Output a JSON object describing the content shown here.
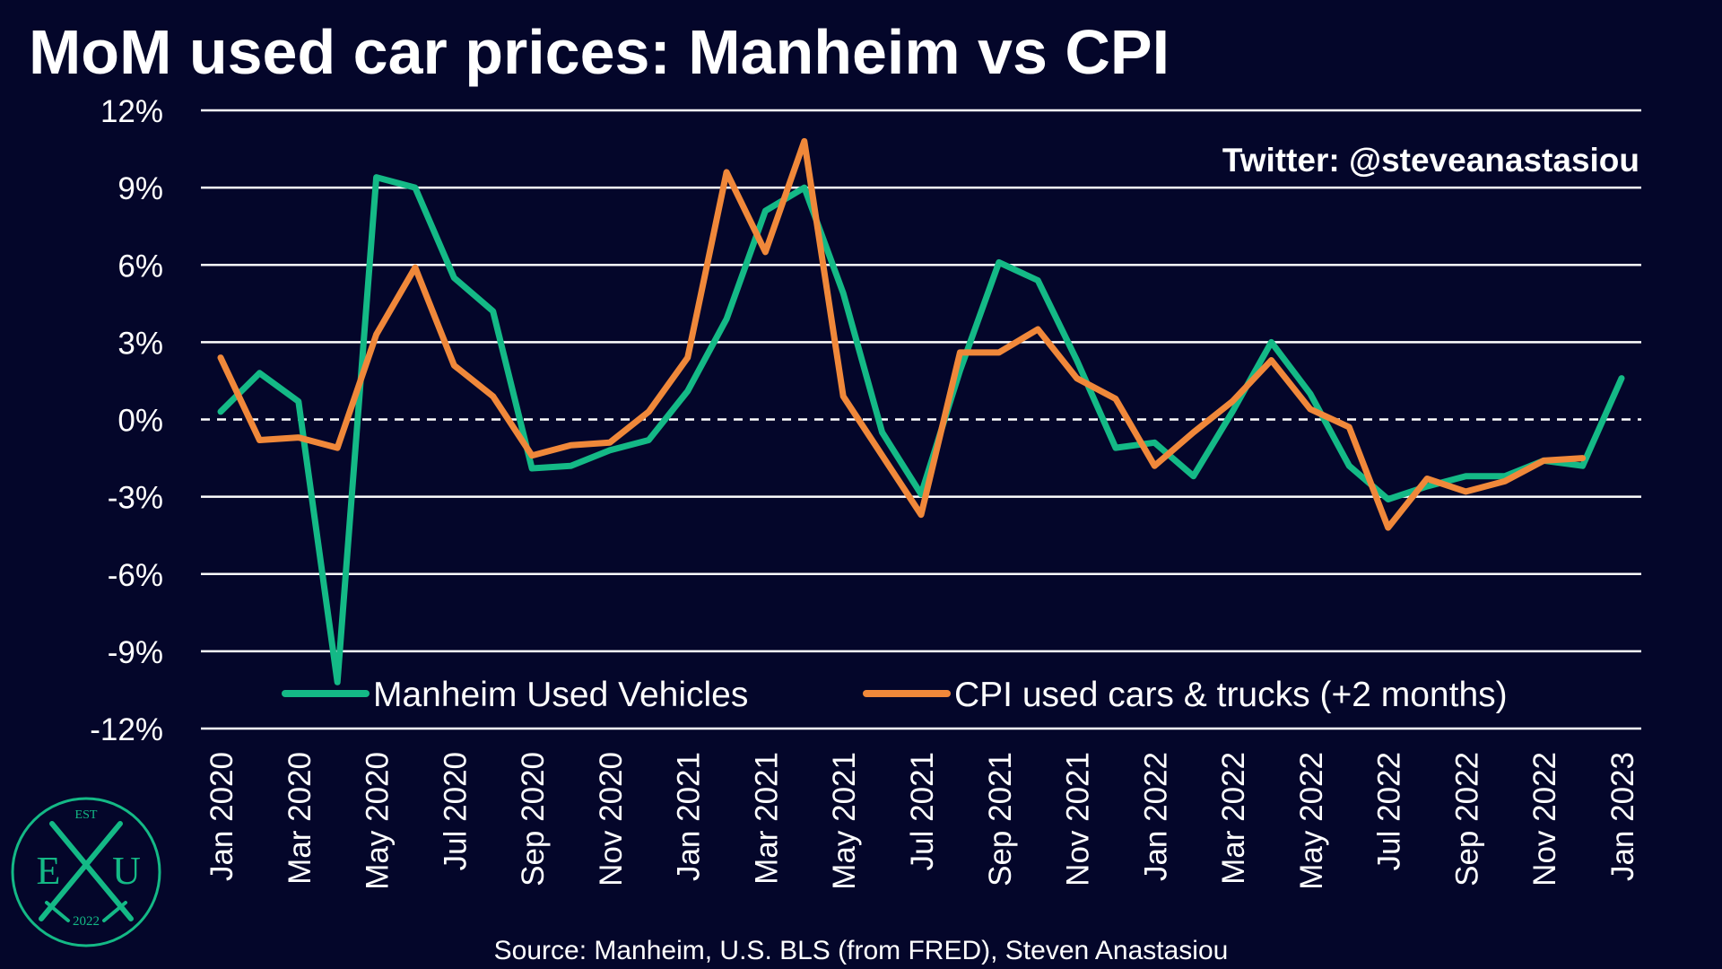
{
  "colors": {
    "background": "#04062a",
    "grid": "#ffffff",
    "manheim": "#14b986",
    "cpi": "#f0883a",
    "text": "#ffffff",
    "logo": "#14b986"
  },
  "logo": {
    "top": "EST",
    "left": "E",
    "right": "U",
    "bottom": "2022",
    "icon": "crossed-swords-icon"
  },
  "chart_data": {
    "type": "line",
    "title": "MoM used car prices: Manheim vs CPI",
    "watermark": "Twitter: @steveanastasiou",
    "source": "Source: Manheim, U.S. BLS (from FRED), Steven Anastasiou",
    "xlabel": "",
    "ylabel": "",
    "ylim": [
      -12,
      12
    ],
    "ytick_values": [
      -12,
      -9,
      -6,
      -3,
      0,
      3,
      6,
      9,
      12
    ],
    "ytick_labels": [
      "-12%",
      "-9%",
      "-6%",
      "-3%",
      "0%",
      "3%",
      "6%",
      "9%",
      "12%"
    ],
    "grid": true,
    "zero_line": "dashed",
    "legend_position": "bottom-inside",
    "x": [
      "Jan 2020",
      "Feb 2020",
      "Mar 2020",
      "Apr 2020",
      "May 2020",
      "Jun 2020",
      "Jul 2020",
      "Aug 2020",
      "Sep 2020",
      "Oct 2020",
      "Nov 2020",
      "Dec 2020",
      "Jan 2021",
      "Feb 2021",
      "Mar 2021",
      "Apr 2021",
      "May 2021",
      "Jun 2021",
      "Jul 2021",
      "Aug 2021",
      "Sep 2021",
      "Oct 2021",
      "Nov 2021",
      "Dec 2021",
      "Jan 2022",
      "Feb 2022",
      "Mar 2022",
      "Apr 2022",
      "May 2022",
      "Jun 2022",
      "Jul 2022",
      "Aug 2022",
      "Sep 2022",
      "Oct 2022",
      "Nov 2022",
      "Dec 2022",
      "Jan 2023"
    ],
    "x_tick_labels": [
      "Jan 2020",
      "Mar 2020",
      "May 2020",
      "Jul 2020",
      "Sep 2020",
      "Nov 2020",
      "Jan 2021",
      "Mar 2021",
      "May 2021",
      "Jul 2021",
      "Sep 2021",
      "Nov 2021",
      "Jan 2022",
      "Mar 2022",
      "May 2022",
      "Jul 2022",
      "Sep 2022",
      "Nov 2022",
      "Jan 2023"
    ],
    "series": [
      {
        "name": "Manheim Used Vehicles",
        "color": "#14b986",
        "values": [
          0.3,
          1.8,
          0.7,
          -10.2,
          9.4,
          9.0,
          5.5,
          4.2,
          -1.9,
          -1.8,
          -1.2,
          -0.8,
          1.1,
          3.9,
          8.1,
          9.0,
          4.9,
          -0.5,
          -2.9,
          1.9,
          6.1,
          5.4,
          2.3,
          -1.1,
          -0.9,
          -2.2,
          0.3,
          3.0,
          1.0,
          -1.8,
          -3.1,
          -2.6,
          -2.2,
          -2.2,
          -1.6,
          -1.8,
          1.6
        ]
      },
      {
        "name": "CPI used cars & trucks (+2 months)",
        "color": "#f0883a",
        "values": [
          2.4,
          -0.8,
          -0.7,
          -1.1,
          3.3,
          5.9,
          2.1,
          0.9,
          -1.4,
          -1.0,
          -0.9,
          0.3,
          2.4,
          9.6,
          6.5,
          10.8,
          0.9,
          -1.4,
          -3.7,
          2.6,
          2.6,
          3.5,
          1.6,
          0.8,
          -1.8,
          -0.5,
          0.7,
          2.3,
          0.4,
          -0.3,
          -4.2,
          -2.3,
          -2.8,
          -2.4,
          -1.6,
          -1.5,
          null
        ]
      }
    ]
  }
}
